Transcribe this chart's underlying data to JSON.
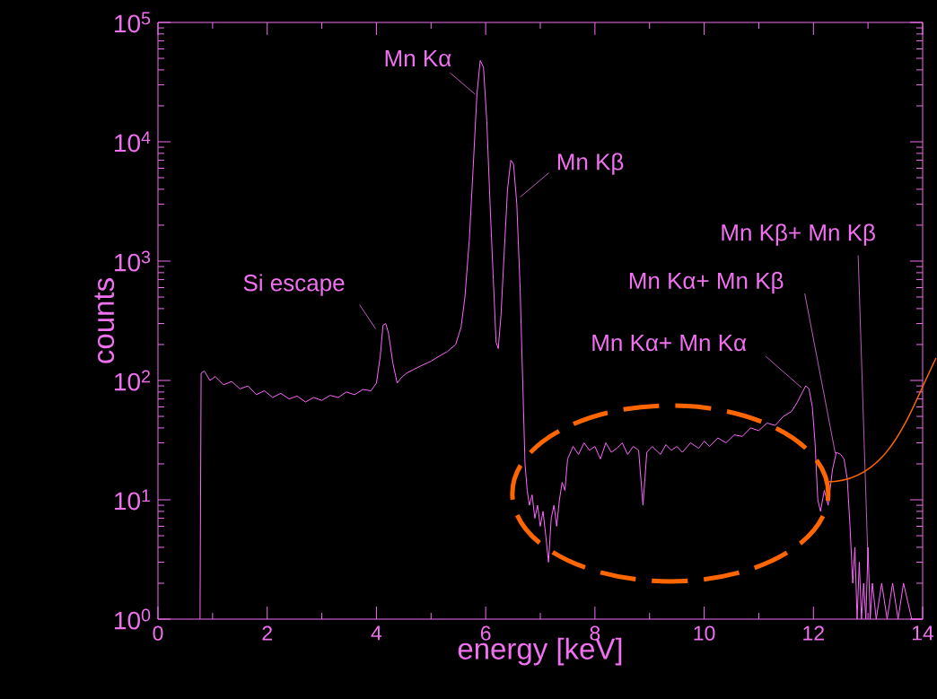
{
  "chart_data": {
    "type": "line",
    "xlabel": "energy [keV]",
    "ylabel": "counts",
    "log": "y",
    "xlim": [
      0,
      14
    ],
    "xticks": [
      0,
      2,
      4,
      6,
      8,
      10,
      12,
      14
    ],
    "ylim": [
      1,
      100000
    ],
    "yticks": [
      {
        "value": 1,
        "label": "10$^{0}$"
      },
      {
        "value": 10,
        "label": "10$^{1}$"
      },
      {
        "value": 100,
        "label": "10$^{2}$"
      },
      {
        "value": 1000,
        "label": "10$^{3}$"
      },
      {
        "value": 10000,
        "label": "10$^{4}$"
      },
      {
        "value": 100000,
        "label": "10$^{5}$"
      }
    ],
    "grid": false,
    "series": [
      {
        "color": "#ff66ff",
        "x": [
          0.77,
          0.79,
          0.85,
          0.95,
          1.05,
          1.2,
          1.35,
          1.5,
          1.65,
          1.8,
          1.95,
          2.1,
          2.25,
          2.4,
          2.55,
          2.7,
          2.85,
          3.0,
          3.15,
          3.3,
          3.45,
          3.6,
          3.75,
          3.9,
          4.0,
          4.07,
          4.12,
          4.17,
          4.22,
          4.3,
          4.38,
          4.45,
          4.55,
          4.7,
          4.85,
          5.0,
          5.15,
          5.3,
          5.45,
          5.55,
          5.62,
          5.7,
          5.77,
          5.84,
          5.9,
          5.96,
          6.02,
          6.08,
          6.14,
          6.19,
          6.23,
          6.28,
          6.34,
          6.4,
          6.46,
          6.51,
          6.57,
          6.63,
          6.68,
          6.72,
          6.76,
          6.8,
          6.85,
          6.9,
          6.95,
          7.0,
          7.05,
          7.1,
          7.15,
          7.2,
          7.25,
          7.3,
          7.35,
          7.4,
          7.45,
          7.5,
          7.6,
          7.7,
          7.8,
          7.9,
          8.0,
          8.1,
          8.2,
          8.3,
          8.4,
          8.5,
          8.6,
          8.7,
          8.8,
          8.88,
          8.95,
          9.05,
          9.2,
          9.3,
          9.4,
          9.5,
          9.6,
          9.75,
          9.9,
          10.0,
          10.1,
          10.25,
          10.4,
          10.55,
          10.7,
          10.85,
          11.0,
          11.15,
          11.3,
          11.45,
          11.6,
          11.7,
          11.8,
          11.86,
          11.92,
          11.98,
          12.03,
          12.08,
          12.13,
          12.2,
          12.27,
          12.35,
          12.42,
          12.5,
          12.56,
          12.62,
          12.67,
          12.72,
          12.76,
          12.8,
          12.84,
          12.88,
          12.92,
          12.96,
          13.0,
          13.04,
          13.08,
          13.15,
          13.25,
          13.35,
          13.45,
          13.55,
          13.65,
          13.8,
          14.0
        ],
        "values": [
          1,
          115,
          120,
          100,
          108,
          92,
          98,
          85,
          90,
          76,
          82,
          72,
          78,
          70,
          74,
          66,
          72,
          68,
          75,
          72,
          80,
          76,
          84,
          82,
          95,
          160,
          290,
          300,
          250,
          140,
          95,
          105,
          115,
          125,
          135,
          145,
          160,
          175,
          200,
          280,
          500,
          1500,
          6000,
          25000,
          48000,
          42000,
          15000,
          3000,
          700,
          210,
          185,
          350,
          1200,
          4000,
          7000,
          6500,
          3000,
          600,
          90,
          20,
          12,
          9,
          11,
          7,
          9,
          6,
          8,
          5,
          3,
          7,
          9,
          6,
          10,
          14,
          12,
          22,
          28,
          24,
          30,
          26,
          28,
          22,
          30,
          25,
          27,
          30,
          24,
          28,
          26,
          9,
          25,
          28,
          24,
          29,
          26,
          28,
          25,
          30,
          27,
          31,
          28,
          33,
          30,
          35,
          34,
          40,
          38,
          44,
          42,
          50,
          55,
          65,
          80,
          90,
          85,
          60,
          30,
          10,
          8,
          12,
          9,
          18,
          25,
          24,
          22,
          15,
          6,
          2,
          4,
          1,
          3,
          1,
          2,
          1,
          4,
          1,
          2,
          1,
          2,
          1,
          2,
          1,
          2,
          1,
          1
        ]
      }
    ],
    "annotations": [
      {
        "text": "Si escape",
        "x": 4.15,
        "y": 300
      },
      {
        "text": "Mn Kα",
        "x": 5.84,
        "y": 25000
      },
      {
        "text": "Mn Kβ",
        "x": 6.5,
        "y": 7000
      },
      {
        "text": "Mn Kα+ Mn Kα",
        "x": 11.85,
        "y": 90
      },
      {
        "text": "Mn Kα+ Mn Kβ",
        "x": 12.4,
        "y": 25
      },
      {
        "text": "Mn Kβ+ Mn Kβ",
        "x": 13.0,
        "y": 3
      }
    ]
  }
}
